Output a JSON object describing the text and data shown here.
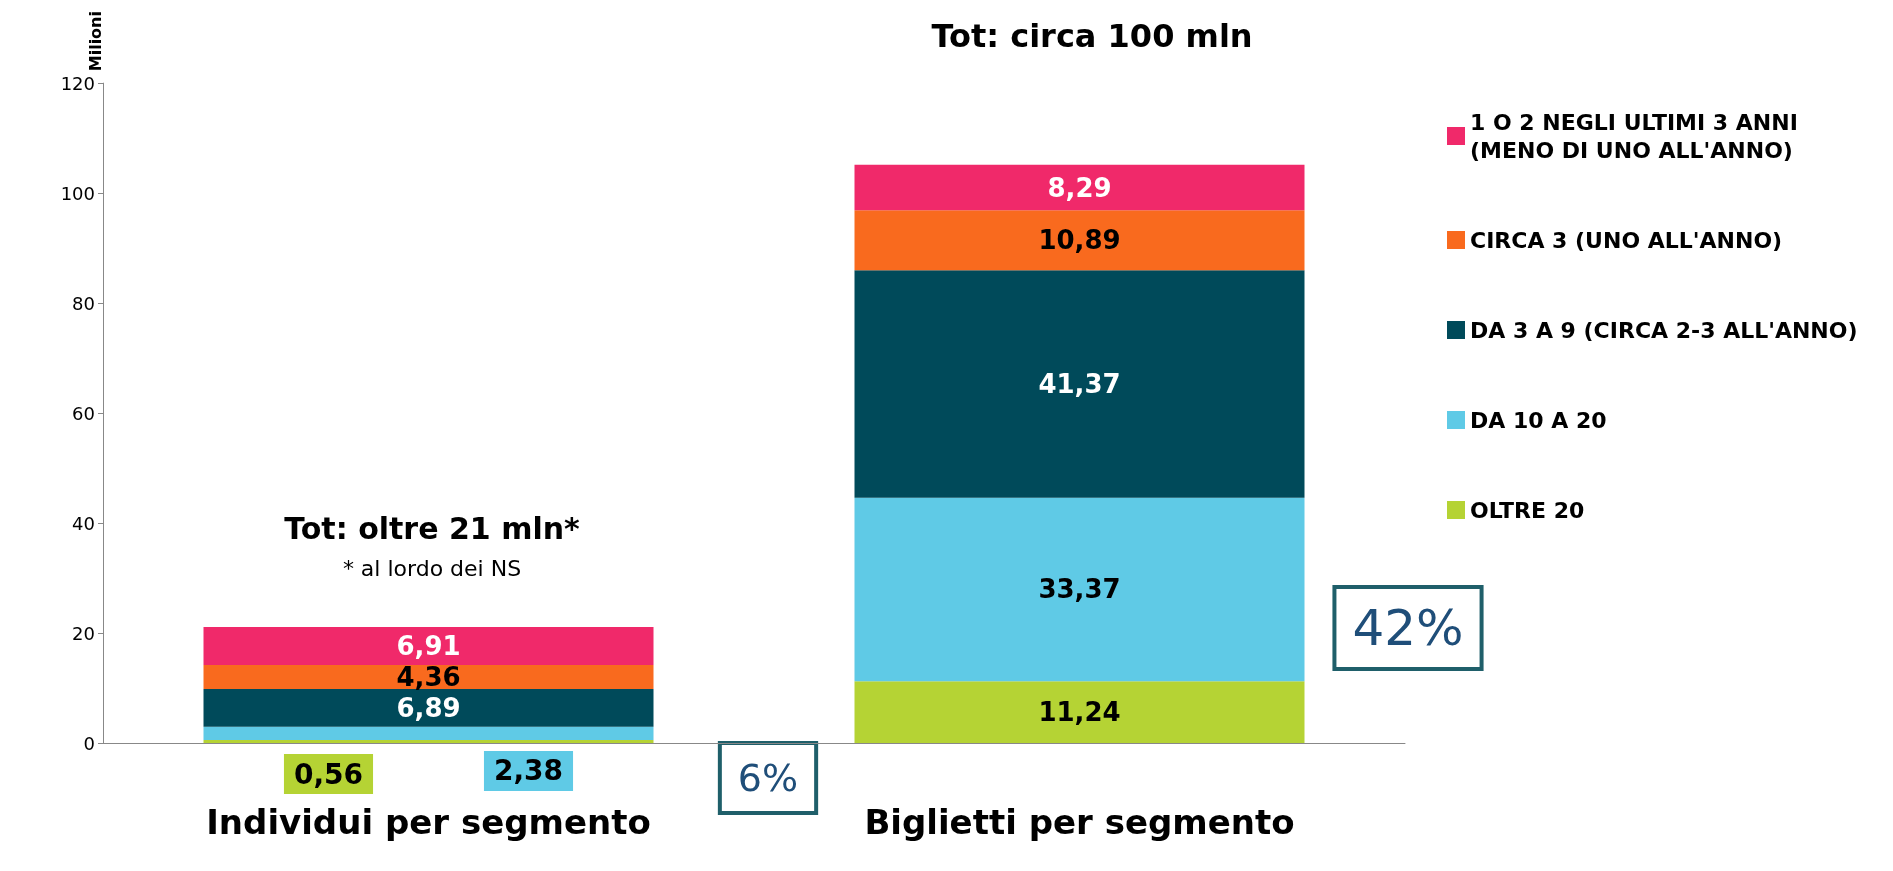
{
  "chart_data": {
    "type": "bar",
    "stacked": true,
    "ylabel": "Milioni",
    "categories": [
      "Individui per segmento",
      "Biglietti per segmento"
    ],
    "series": [
      {
        "name": "OLTRE 20",
        "color": "#b5d334",
        "values": [
          0.56,
          11.24
        ],
        "value_labels": [
          "0,56",
          "11,24"
        ]
      },
      {
        "name": "DA 10 A 20",
        "color": "#5fcae6",
        "values": [
          2.38,
          33.37
        ],
        "value_labels": [
          "2,38",
          "33,37"
        ]
      },
      {
        "name": "DA 3 A 9 (CIRCA 2-3 ALL'ANNO)",
        "color": "#004a5a",
        "values": [
          6.89,
          41.37
        ],
        "value_labels": [
          "6,89",
          "41,37"
        ]
      },
      {
        "name": "CIRCA 3 (UNO ALL'ANNO)",
        "color": "#f96a1e",
        "values": [
          4.36,
          10.89
        ],
        "value_labels": [
          "4,36",
          "10,89"
        ]
      },
      {
        "name": "1 O 2 NEGLI ULTIMI 3 ANNI (MENO DI UNO ALL'ANNO)",
        "color": "#f0296a",
        "values": [
          6.91,
          8.29
        ],
        "value_labels": [
          "6,91",
          "8,29"
        ]
      }
    ],
    "ylim": [
      0,
      120
    ],
    "yticks": [
      0,
      20,
      40,
      60,
      80,
      100,
      120
    ],
    "legend": "right",
    "grid": false,
    "annotations": [
      "Tot: oltre 21 mln*",
      "* al lordo dei NS",
      "Tot: circa 100 mln",
      "6%",
      "42%"
    ]
  }
}
